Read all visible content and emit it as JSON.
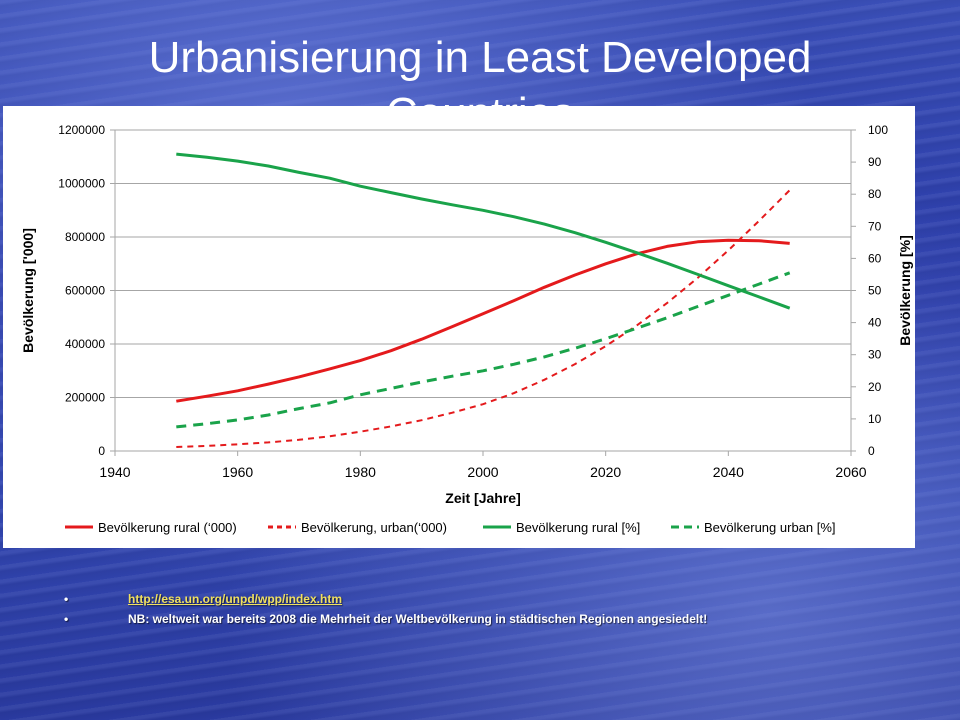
{
  "slide": {
    "title": "Urbanisierung in Least Developed\nCountries"
  },
  "bullets": [
    {
      "text": "http://esa.un.org/unpd/wpp/index.htm",
      "is_link": true
    },
    {
      "text": "NB: weltweit war bereits 2008 die Mehrheit der Weltbevölkerung in städtischen Regionen angesiedelt!",
      "is_link": false
    }
  ],
  "bullet_glyph": "•",
  "colors": {
    "background": "#2f44ad",
    "red": "#e41a1c",
    "green": "#1aa34a",
    "link": "#f0e060"
  },
  "chart_data": {
    "type": "line",
    "title": "",
    "xlabel": "Zeit [Jahre]",
    "ylabel": "Bevölkerung ['000]",
    "y2label": "Bevölkerung [%]",
    "xlim": [
      1940,
      2060
    ],
    "ylim": [
      0,
      1200000
    ],
    "y2lim": [
      0,
      100
    ],
    "x_ticks": [
      "1940",
      "1960",
      "1980",
      "2000",
      "2020",
      "2040",
      "2060"
    ],
    "y_ticks": [
      "0",
      "200000",
      "400000",
      "600000",
      "800000",
      "1000000",
      "1200000"
    ],
    "y2_ticks": [
      "0",
      "10",
      "20",
      "30",
      "40",
      "50",
      "60",
      "70",
      "80",
      "90",
      "100"
    ],
    "grid": "horizontal",
    "legend_position": "bottom",
    "x": [
      1950,
      1955,
      1960,
      1965,
      1970,
      1975,
      1980,
      1985,
      1990,
      1995,
      2000,
      2005,
      2010,
      2015,
      2020,
      2025,
      2030,
      2035,
      2040,
      2045,
      2050
    ],
    "series": [
      {
        "name": "Bevölkerung rural (‘000)",
        "axis": "left",
        "color": "#e41a1c",
        "dash": "solid",
        "values": [
          186000,
          205000,
          225000,
          250000,
          277000,
          307000,
          338000,
          375000,
          418000,
          465000,
          513000,
          562000,
          612000,
          658000,
          700000,
          737000,
          765000,
          782000,
          788000,
          786000,
          776000
        ]
      },
      {
        "name": "Bevölkerung, urban(‘000)",
        "axis": "left",
        "color": "#e41a1c",
        "dash": "dashed",
        "values": [
          15000,
          19000,
          25000,
          32000,
          42000,
          55000,
          72000,
          92000,
          115000,
          143000,
          175000,
          216000,
          266000,
          325000,
          392000,
          468000,
          553000,
          647000,
          750000,
          860000,
          975000
        ]
      },
      {
        "name": "Bevölkerung rural [%]",
        "axis": "right",
        "color": "#1aa34a",
        "dash": "solid",
        "values": [
          92.5,
          91.5,
          90.3,
          88.8,
          86.8,
          85.0,
          82.5,
          80.5,
          78.5,
          76.7,
          75.0,
          73.0,
          70.7,
          68.0,
          65.0,
          61.8,
          58.5,
          55.0,
          51.5,
          48.0,
          44.5
        ]
      },
      {
        "name": "Bevölkerung urban [%]",
        "axis": "right",
        "color": "#1aa34a",
        "dash": "dashed",
        "values": [
          7.5,
          8.5,
          9.7,
          11.2,
          13.2,
          15.0,
          17.5,
          19.5,
          21.5,
          23.3,
          25.0,
          27.0,
          29.3,
          32.0,
          35.0,
          38.2,
          41.5,
          45.0,
          48.5,
          52.0,
          55.5
        ]
      }
    ]
  }
}
